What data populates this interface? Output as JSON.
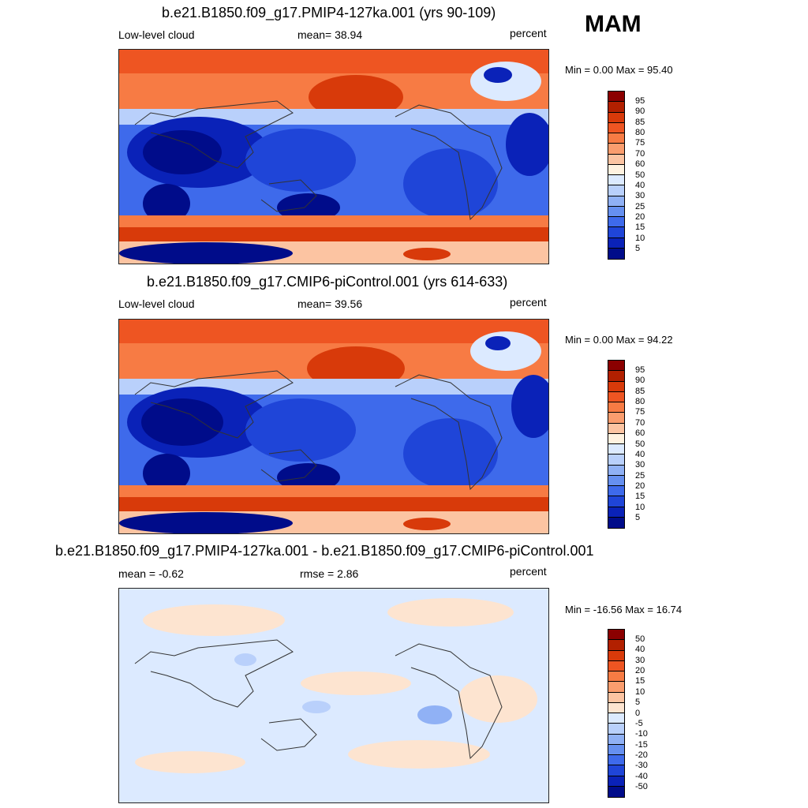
{
  "season": "MAM",
  "panels": [
    {
      "title": "b.e21.B1850.f09_g17.PMIP4-127ka.001 (yrs 90-109)",
      "left_label": "Low-level cloud",
      "center_label": "mean=  38.94",
      "units": "percent",
      "minmax": "Min =   0.00 Max =  95.40",
      "colorbar": {
        "labels": [
          "95",
          "90",
          "85",
          "80",
          "75",
          "70",
          "60",
          "50",
          "40",
          "30",
          "25",
          "20",
          "15",
          "10",
          "5"
        ],
        "colors": [
          "#8b0000",
          "#b22000",
          "#d83a0a",
          "#ee5522",
          "#f77b44",
          "#fa9d6e",
          "#fcc4a2",
          "#fff2e0",
          "#dceaff",
          "#b9d0fb",
          "#90b1f5",
          "#6690f0",
          "#3e6aeb",
          "#1f45d8",
          "#0a22b8",
          "#000c8a"
        ]
      }
    },
    {
      "title": "b.e21.B1850.f09_g17.CMIP6-piControl.001 (yrs 614-633)",
      "left_label": "Low-level cloud",
      "center_label": "mean=  39.56",
      "units": "percent",
      "minmax": "Min =   0.00 Max =  94.22",
      "colorbar": {
        "labels": [
          "95",
          "90",
          "85",
          "80",
          "75",
          "70",
          "60",
          "50",
          "40",
          "30",
          "25",
          "20",
          "15",
          "10",
          "5"
        ],
        "colors": [
          "#8b0000",
          "#b22000",
          "#d83a0a",
          "#ee5522",
          "#f77b44",
          "#fa9d6e",
          "#fcc4a2",
          "#fff2e0",
          "#dceaff",
          "#b9d0fb",
          "#90b1f5",
          "#6690f0",
          "#3e6aeb",
          "#1f45d8",
          "#0a22b8",
          "#000c8a"
        ]
      }
    },
    {
      "title": "b.e21.B1850.f09_g17.PMIP4-127ka.001 - b.e21.B1850.f09_g17.CMIP6-piControl.001",
      "left_label": "mean =  -0.62",
      "center_label": "rmse =   2.86",
      "units": "percent",
      "minmax": "Min = -16.56 Max =  16.74",
      "colorbar": {
        "labels": [
          "50",
          "40",
          "30",
          "20",
          "15",
          "10",
          "5",
          "0",
          "-5",
          "-10",
          "-15",
          "-20",
          "-30",
          "-40",
          "-50"
        ],
        "colors": [
          "#8b0000",
          "#b22000",
          "#d83a0a",
          "#ee5522",
          "#f77b44",
          "#fa9d6e",
          "#fcc4a2",
          "#fde4d0",
          "#dceaff",
          "#b9d0fb",
          "#90b1f5",
          "#6690f0",
          "#3e6aeb",
          "#1f45d8",
          "#0a22b8",
          "#000c8a"
        ]
      }
    }
  ]
}
